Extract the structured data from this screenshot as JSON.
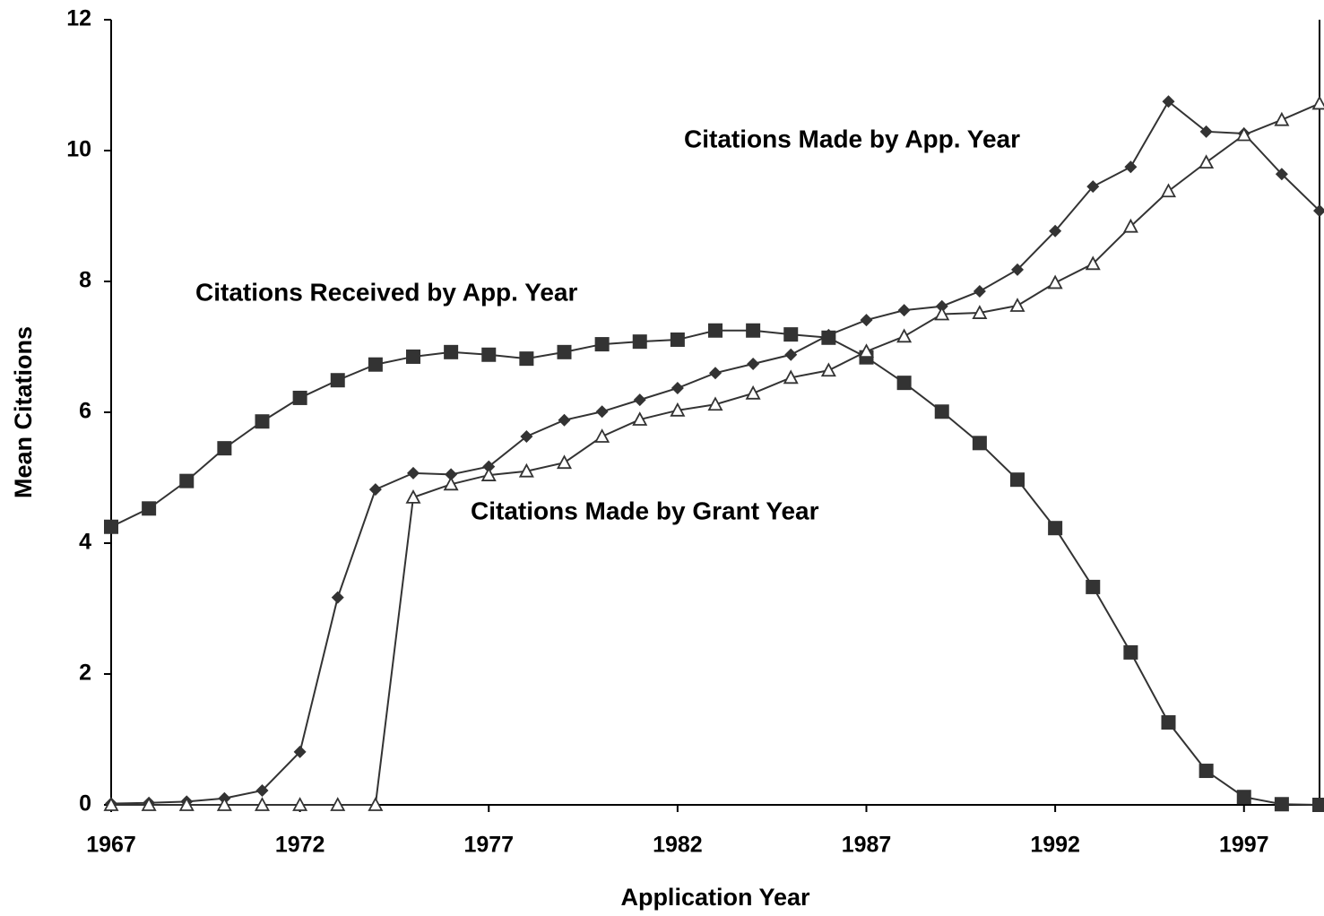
{
  "chart_data": {
    "type": "line",
    "xlabel": "Application Year",
    "ylabel": "Mean Citations",
    "x": [
      1967,
      1968,
      1969,
      1970,
      1971,
      1972,
      1973,
      1974,
      1975,
      1976,
      1977,
      1978,
      1979,
      1980,
      1981,
      1982,
      1983,
      1984,
      1985,
      1986,
      1987,
      1988,
      1989,
      1990,
      1991,
      1992,
      1993,
      1994,
      1995,
      1996,
      1997,
      1998,
      1999
    ],
    "xlim": [
      1967,
      1999
    ],
    "xticks": [
      1967,
      1972,
      1977,
      1982,
      1987,
      1992,
      1997
    ],
    "ylim": [
      0,
      12
    ],
    "yticks": [
      0,
      2,
      4,
      6,
      8,
      10,
      12
    ],
    "series": [
      {
        "name": "Citations Received by App. Year",
        "color": "#333333",
        "marker": "square",
        "values": [
          4.25,
          4.53,
          4.95,
          5.45,
          5.86,
          6.22,
          6.49,
          6.73,
          6.85,
          6.92,
          6.88,
          6.82,
          6.92,
          7.04,
          7.08,
          7.11,
          7.25,
          7.25,
          7.19,
          7.14,
          6.84,
          6.45,
          6.01,
          5.53,
          4.97,
          4.23,
          3.33,
          2.33,
          1.26,
          0.52,
          0.12,
          0.01,
          0
        ]
      },
      {
        "name": "Citations Made by App. Year",
        "color": "#333333",
        "marker": "diamond",
        "values": [
          0.02,
          0.03,
          0.05,
          0.1,
          0.22,
          0.81,
          3.17,
          4.82,
          5.07,
          5.05,
          5.17,
          5.63,
          5.88,
          6.01,
          6.19,
          6.37,
          6.6,
          6.74,
          6.88,
          7.18,
          7.41,
          7.56,
          7.62,
          7.85,
          8.18,
          8.77,
          9.45,
          9.75,
          10.75,
          10.29,
          10.26,
          9.64,
          9.08
        ]
      },
      {
        "name": "Citations Made by Grant Year",
        "color": "#333333",
        "marker": "triangle",
        "values": [
          0,
          0,
          0,
          0,
          0,
          0,
          0,
          0,
          4.7,
          4.9,
          5.04,
          5.1,
          5.23,
          5.63,
          5.89,
          6.03,
          6.12,
          6.29,
          6.53,
          6.64,
          6.93,
          7.16,
          7.5,
          7.52,
          7.63,
          7.98,
          8.27,
          8.84,
          9.38,
          9.82,
          10.24,
          10.47,
          10.72
        ]
      }
    ]
  }
}
